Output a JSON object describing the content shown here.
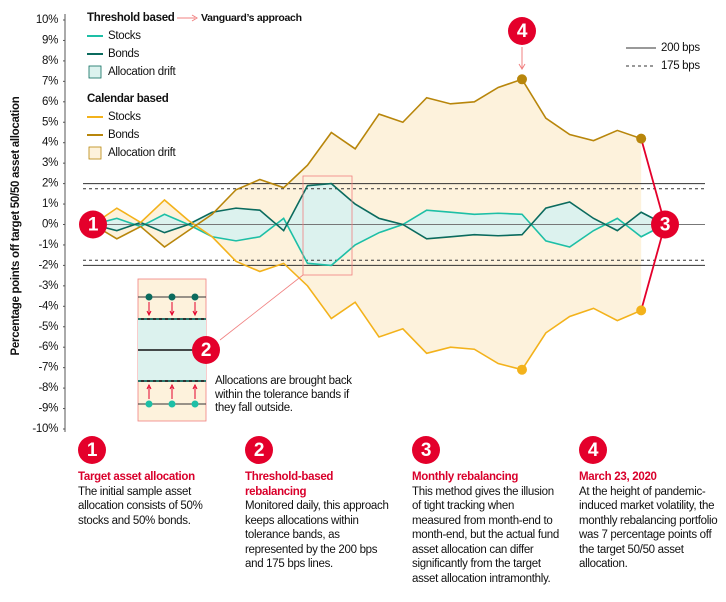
{
  "chart_data": {
    "type": "line",
    "ylabel": "Percentage points off target 50/50 asset allocation",
    "ylim": [
      -10,
      10
    ],
    "yticks": [
      {
        "value": 10,
        "label": "10%"
      },
      {
        "value": 9,
        "label": "9%"
      },
      {
        "value": 8,
        "label": "8%"
      },
      {
        "value": 7,
        "label": "7%"
      },
      {
        "value": 6,
        "label": "6%"
      },
      {
        "value": 5,
        "label": "5%"
      },
      {
        "value": 4,
        "label": "4%"
      },
      {
        "value": 3,
        "label": "3%"
      },
      {
        "value": 2,
        "label": "2%"
      },
      {
        "value": 1,
        "label": "1%"
      },
      {
        "value": 0,
        "label": "0%"
      },
      {
        "value": -1,
        "label": "-1%"
      },
      {
        "value": -2,
        "label": "-2%"
      },
      {
        "value": -3,
        "label": "-3%"
      },
      {
        "value": -4,
        "label": "-4%"
      },
      {
        "value": -5,
        "label": "-5%"
      },
      {
        "value": -6,
        "label": "-6%"
      },
      {
        "value": -7,
        "label": "-7%"
      },
      {
        "value": -8,
        "label": "-8%"
      },
      {
        "value": -9,
        "label": "-9%"
      },
      {
        "value": -10,
        "label": "-10%"
      }
    ],
    "categories": [
      null,
      null,
      null,
      null,
      null,
      null,
      null,
      null,
      null,
      null,
      null,
      null,
      null,
      null,
      null,
      null,
      null,
      null,
      null,
      null,
      null,
      null,
      null,
      null,
      null
    ],
    "groups": [
      {
        "title": "Threshold based",
        "note": "Vanguard’s approach",
        "drift_label": "Allocation drift",
        "drift_color": "#dcf2ee",
        "series": [
          {
            "name": "Stocks",
            "color": "#1dbfa6",
            "values": [
              0,
              0.3,
              -0.1,
              0.5,
              0,
              -0.6,
              -0.8,
              -0.6,
              0.3,
              -1.9,
              -2.0,
              -1.0,
              -0.4,
              0,
              0.7,
              0.6,
              0.5,
              0.55,
              0.5,
              -0.8,
              -1.1,
              -0.3,
              0.3,
              -0.6,
              0
            ]
          },
          {
            "name": "Bonds",
            "color": "#0b6b5e",
            "values": [
              0,
              -0.3,
              0.1,
              -0.4,
              0,
              0.6,
              0.8,
              0.7,
              -0.3,
              1.9,
              2.0,
              1.0,
              0.3,
              0,
              -0.7,
              -0.6,
              -0.5,
              -0.55,
              -0.5,
              0.8,
              1.1,
              0.3,
              -0.3,
              0.6,
              0
            ]
          }
        ]
      },
      {
        "title": "Calendar based",
        "drift_label": "Allocation drift",
        "drift_color": "#fdf2dc",
        "series": [
          {
            "name": "Stocks",
            "color": "#f3b21b",
            "values": [
              0,
              0.8,
              0.1,
              1.2,
              0.2,
              -0.6,
              -1.8,
              -2.3,
              -1.9,
              -3.0,
              -4.6,
              -3.8,
              -5.5,
              -5.1,
              -6.3,
              -6.0,
              -6.1,
              -6.8,
              -7.1,
              -5.3,
              -4.5,
              -4.1,
              -4.7,
              -4.2,
              null
            ]
          },
          {
            "name": "Bonds",
            "color": "#b8860b",
            "values": [
              0,
              -0.7,
              -0.1,
              -1.1,
              -0.3,
              0.5,
              1.7,
              2.2,
              1.8,
              2.9,
              4.5,
              3.7,
              5.4,
              5.0,
              6.2,
              5.9,
              6.0,
              6.7,
              7.1,
              5.2,
              4.4,
              4.1,
              4.6,
              4.2,
              null
            ]
          }
        ]
      }
    ],
    "bands": [
      {
        "label": "200 bps",
        "value": 2,
        "style": "solid"
      },
      {
        "label": "175 bps",
        "value": 1.75,
        "style": "dashed"
      }
    ],
    "callout": "Allocations are brought back within the tolerance bands if they fall outside.",
    "notes": [
      {
        "number": "1",
        "title": "Target asset allocation",
        "text": "The initial sample asset allocation consists of 50% stocks and 50% bonds."
      },
      {
        "number": "2",
        "title": "Threshold-based rebalancing",
        "text": "Monitored daily, this approach keeps allocations within tolerance bands, as represented by the 200 bps and 175 bps lines."
      },
      {
        "number": "3",
        "title": "Monthly rebalancing",
        "text": "This method gives the illusion of tight tracking when measured from month-end to month-end, but the actual fund asset allocation can differ significantly from the target asset allocation intramonthly."
      },
      {
        "number": "4",
        "title": "March 23, 2020",
        "text": "At the height of pandemic-induced market volatility, the monthly rebalancing portfolio was 7 percentage points off the target 50/50 asset allocation."
      }
    ]
  }
}
